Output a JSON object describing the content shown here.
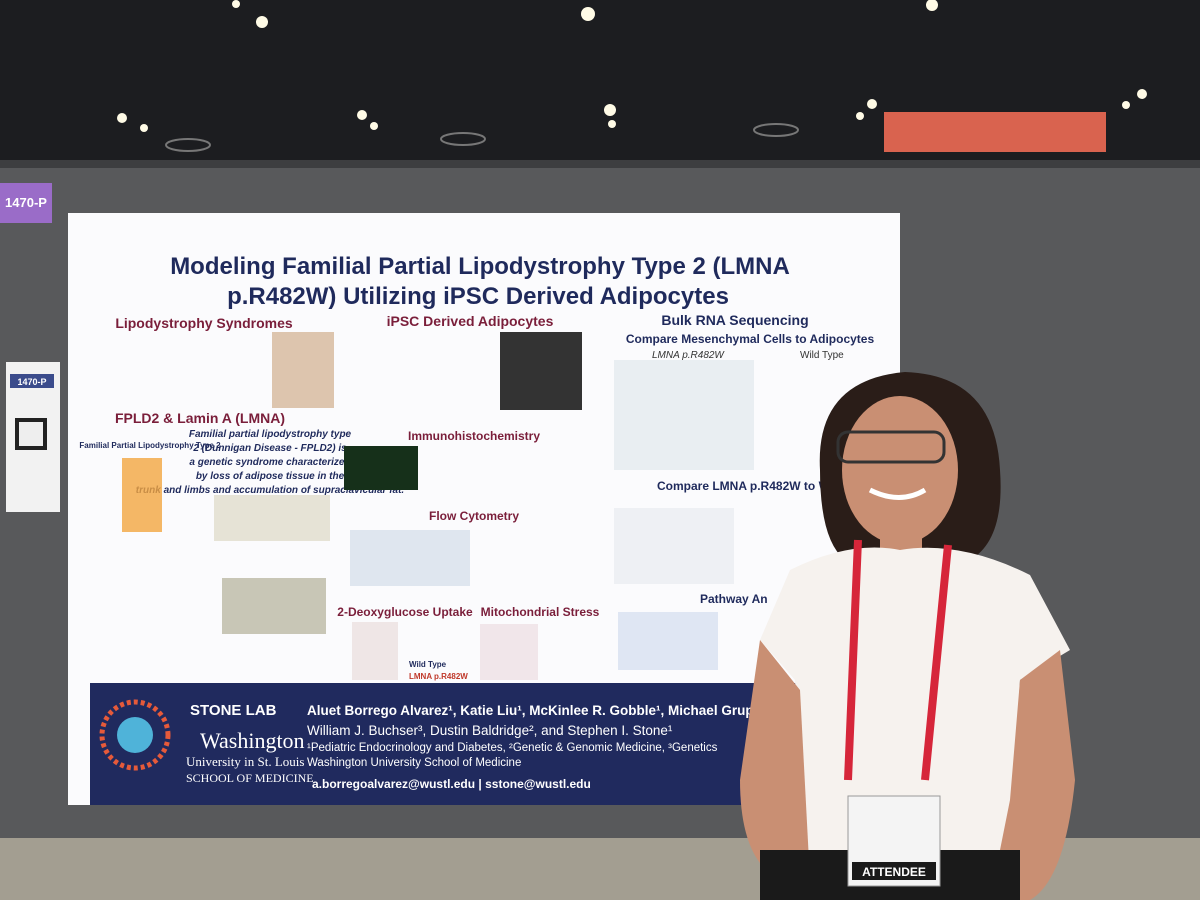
{
  "booth_label": "1470-P",
  "poster": {
    "title_line1": "Modeling Familial Partial Lipodystrophy Type 2 (LMNA",
    "title_line2": "p.R482W) Utilizing iPSC Derived Adipocytes",
    "sections": [
      "Lipodystrophy Syndromes",
      "iPSC Derived Adipocytes",
      "Bulk RNA Sequencing",
      "Compare Mesenchymal Cells to Adipocytes",
      "FPLD2 & Lamin A (LMNA)",
      "Immunohistochemistry",
      "Flow Cytometry",
      "2-Deoxyglucose Uptake",
      "Mitochondrial Stress",
      "Compare LMNA p.R482W to Wild Ty",
      "Pathway An"
    ],
    "subheading": "Familial Partial Lipodystrophy Type 2",
    "highlight": [
      "Familial partial lipodystrophy type",
      "2 (Dunnigan Disease - FPLD2) is",
      "a genetic syndrome characterized",
      "by loss of adipose tissue in the",
      "trunk and limbs and accumulation of supraclavicular fat."
    ],
    "legend": [
      "Wild Type",
      "LMNA p.R482W"
    ],
    "footer": {
      "lab": "STONE LAB",
      "university": [
        "Washington",
        "University in St. Louis",
        "SCHOOL OF MEDICINE"
      ],
      "authors": [
        "Aluet Borrego Alvarez¹, Katie Liu¹, McKinlee R. Gobble¹, Michael Grupe",
        "William J. Buchser³, Dustin Baldridge², and Stephen I. Stone¹"
      ],
      "affiliations": [
        "¹Pediatric Endocrinology and Diabetes, ²Genetic & Genomic Medicine, ³Genetics",
        "Washington University School of Medicine"
      ],
      "emails": "a.borregoalvarez@wustl.edu | sstone@wustl.edu"
    }
  },
  "badge": "ATTENDEE"
}
